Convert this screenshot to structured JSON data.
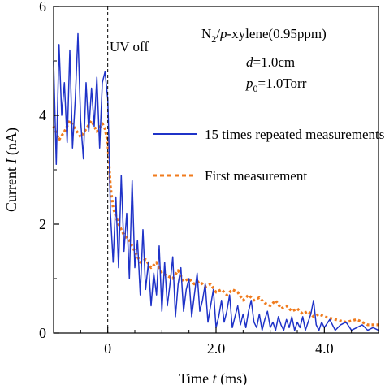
{
  "chart_data": {
    "type": "line",
    "title": "",
    "xlabel": {
      "prefix": "Time ",
      "var": "t",
      "unit": " (ms)"
    },
    "ylabel": {
      "prefix": "Current ",
      "var": "I",
      "unit": " (nA)"
    },
    "xlim": [
      -1.0,
      5.0
    ],
    "ylim": [
      0,
      6
    ],
    "xticks": [
      {
        "v": 0,
        "label": "0"
      },
      {
        "v": 2,
        "label": "2.0"
      },
      {
        "v": 4,
        "label": "4.0"
      }
    ],
    "yticks": [
      {
        "v": 0,
        "label": "0"
      },
      {
        "v": 2,
        "label": "2"
      },
      {
        "v": 4,
        "label": "4"
      },
      {
        "v": 6,
        "label": "6"
      }
    ],
    "grid": false,
    "legend_position": "right",
    "annotations": {
      "uv_off": {
        "text": "UV off",
        "x": 0
      },
      "sample": {
        "n": "N",
        "sub": "2",
        "slash": "/",
        "p": "p",
        "rest": "-xylene(0.95ppm)"
      },
      "distance": {
        "var": "d",
        "rest": "=1.0cm"
      },
      "pressure": {
        "var": "p",
        "sub": "0",
        "rest": "=1.0Torr"
      }
    },
    "series": [
      {
        "name": "15 times repeated measurements",
        "color": "#1f33c8",
        "style": "solid",
        "x": [
          -1.0,
          -0.95,
          -0.9,
          -0.85,
          -0.8,
          -0.75,
          -0.7,
          -0.65,
          -0.6,
          -0.55,
          -0.5,
          -0.45,
          -0.4,
          -0.35,
          -0.3,
          -0.25,
          -0.2,
          -0.15,
          -0.1,
          -0.05,
          0.0,
          0.02,
          0.05,
          0.1,
          0.15,
          0.2,
          0.25,
          0.3,
          0.35,
          0.4,
          0.45,
          0.5,
          0.55,
          0.6,
          0.65,
          0.7,
          0.75,
          0.8,
          0.85,
          0.9,
          0.95,
          1.0,
          1.05,
          1.1,
          1.15,
          1.2,
          1.25,
          1.3,
          1.35,
          1.4,
          1.45,
          1.5,
          1.55,
          1.6,
          1.65,
          1.7,
          1.75,
          1.8,
          1.85,
          1.9,
          1.95,
          2.0,
          2.05,
          2.1,
          2.15,
          2.2,
          2.25,
          2.3,
          2.35,
          2.4,
          2.45,
          2.5,
          2.55,
          2.6,
          2.65,
          2.7,
          2.75,
          2.8,
          2.85,
          2.9,
          2.95,
          3.0,
          3.05,
          3.1,
          3.15,
          3.2,
          3.25,
          3.3,
          3.35,
          3.4,
          3.45,
          3.5,
          3.55,
          3.6,
          3.65,
          3.7,
          3.75,
          3.8,
          3.85,
          3.9,
          3.95,
          4.0,
          4.1,
          4.2,
          4.3,
          4.4,
          4.5,
          4.6,
          4.7,
          4.8,
          4.9,
          5.0
        ],
        "y": [
          5.0,
          3.1,
          5.3,
          4.0,
          4.6,
          3.5,
          5.2,
          3.4,
          4.3,
          5.5,
          3.9,
          3.2,
          4.6,
          3.7,
          4.5,
          3.8,
          4.7,
          3.4,
          4.6,
          4.8,
          4.3,
          3.6,
          2.2,
          1.3,
          2.5,
          1.2,
          2.9,
          1.5,
          2.2,
          1.0,
          2.8,
          1.2,
          1.7,
          0.7,
          1.9,
          0.8,
          1.3,
          0.5,
          1.1,
          0.7,
          1.6,
          0.4,
          1.3,
          0.5,
          0.9,
          1.4,
          0.3,
          0.9,
          1.2,
          0.4,
          0.8,
          1.0,
          0.3,
          0.7,
          1.1,
          0.4,
          0.6,
          0.9,
          0.2,
          0.5,
          0.8,
          0.1,
          0.3,
          0.6,
          0.2,
          0.4,
          0.7,
          0.1,
          0.3,
          0.5,
          0.15,
          0.35,
          0.1,
          0.4,
          0.6,
          0.2,
          0.1,
          0.35,
          0.05,
          0.25,
          0.4,
          0.1,
          0.2,
          0.05,
          0.3,
          0.15,
          0.05,
          0.25,
          0.1,
          0.3,
          0.05,
          0.2,
          0.1,
          0.3,
          0.05,
          0.2,
          0.35,
          0.6,
          0.15,
          0.05,
          0.2,
          0.1,
          0.25,
          0.05,
          0.15,
          0.2,
          0.05,
          0.1,
          0.15,
          0.05,
          0.1,
          0.05
        ]
      },
      {
        "name": "First measurement",
        "color": "#f07b1d",
        "style": "dotted",
        "x": [
          -1.0,
          -0.9,
          -0.8,
          -0.7,
          -0.6,
          -0.5,
          -0.4,
          -0.3,
          -0.2,
          -0.1,
          -0.05,
          0.0,
          0.05,
          0.1,
          0.2,
          0.3,
          0.4,
          0.5,
          0.6,
          0.7,
          0.8,
          0.9,
          1.0,
          1.1,
          1.2,
          1.3,
          1.4,
          1.5,
          1.6,
          1.7,
          1.8,
          1.9,
          2.0,
          2.1,
          2.2,
          2.3,
          2.4,
          2.5,
          2.6,
          2.7,
          2.8,
          2.9,
          3.0,
          3.1,
          3.2,
          3.3,
          3.4,
          3.5,
          3.6,
          3.7,
          3.8,
          3.9,
          4.0,
          4.2,
          4.4,
          4.6,
          4.8,
          5.0
        ],
        "y": [
          3.8,
          3.55,
          3.7,
          3.9,
          3.75,
          3.6,
          3.75,
          3.9,
          3.7,
          3.85,
          3.75,
          3.5,
          2.7,
          2.3,
          2.0,
          1.8,
          1.7,
          1.5,
          1.3,
          1.35,
          1.2,
          1.3,
          1.1,
          1.05,
          1.0,
          1.15,
          0.95,
          1.0,
          0.9,
          0.95,
          0.85,
          0.9,
          0.75,
          0.8,
          0.7,
          0.8,
          0.75,
          0.6,
          0.7,
          0.6,
          0.65,
          0.55,
          0.5,
          0.6,
          0.45,
          0.5,
          0.4,
          0.45,
          0.35,
          0.4,
          0.3,
          0.35,
          0.3,
          0.25,
          0.2,
          0.25,
          0.15,
          0.15
        ]
      }
    ]
  }
}
